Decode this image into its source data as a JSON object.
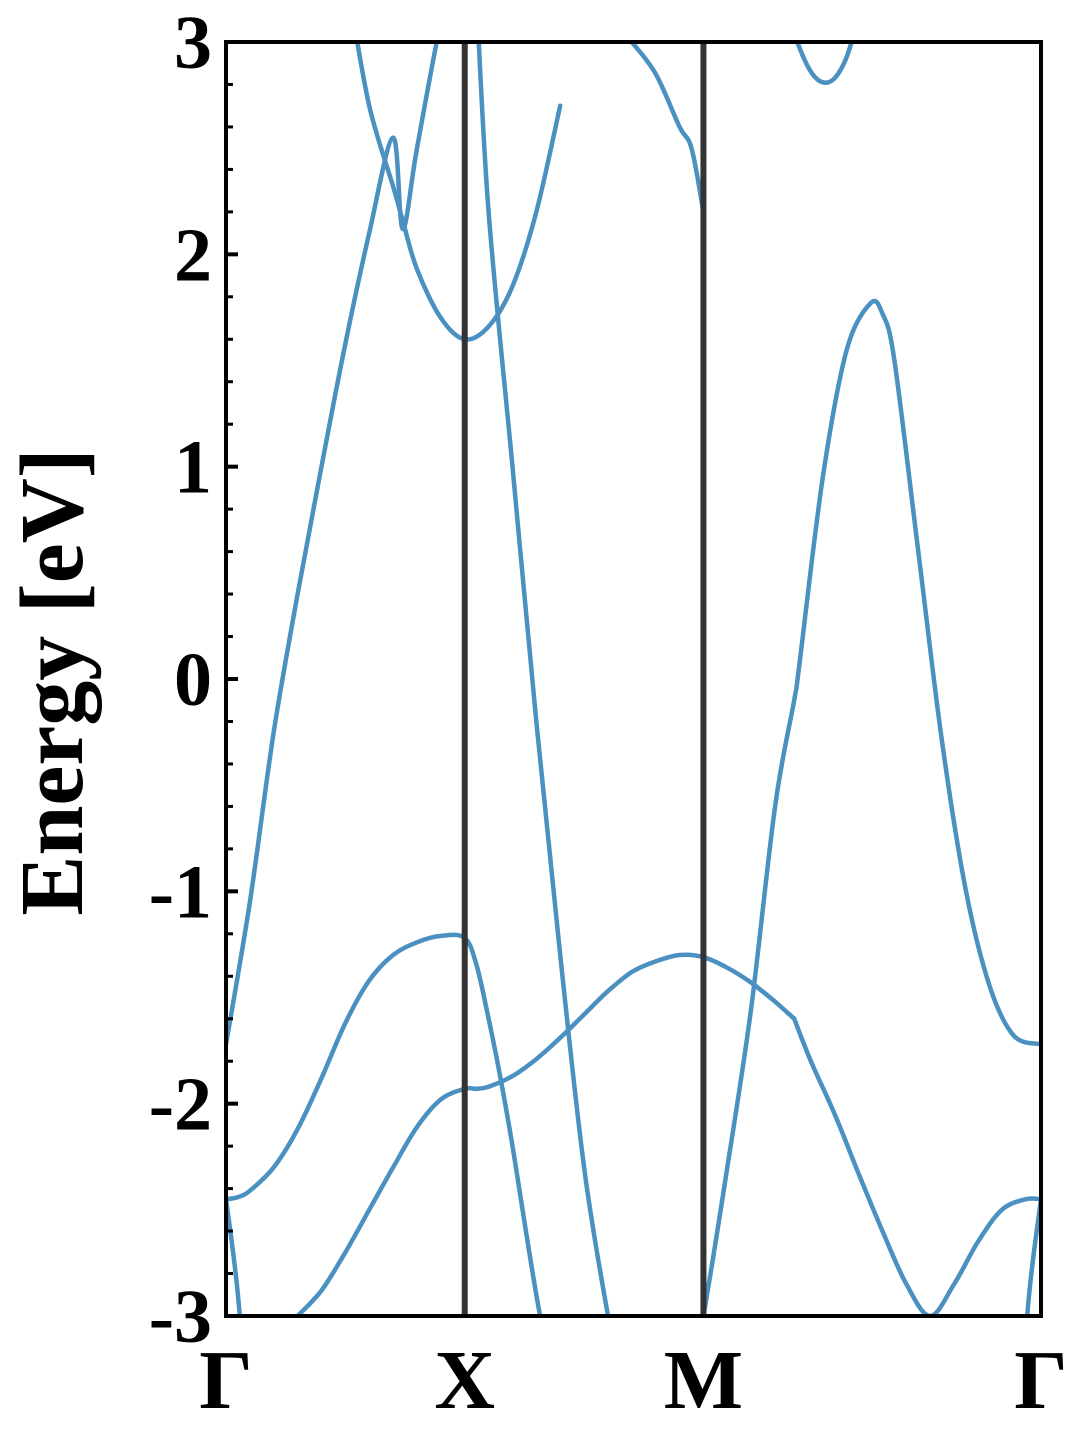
{
  "chart_data": {
    "type": "line",
    "title": "",
    "ylabel": "Energy [eV]",
    "xlabel": "",
    "ylim": [
      -3,
      3
    ],
    "y_ticks": [
      "-3",
      "-2",
      "-1",
      "0",
      "1",
      "2",
      "3"
    ],
    "y_minor_step": 0.2,
    "grid": false,
    "legend": "none",
    "line_color": "#4a90c0",
    "divider_color": "#333333",
    "path": {
      "labels": [
        "Γ",
        "X",
        "M",
        "Γ"
      ],
      "positions": [
        0,
        1,
        2,
        3.414
      ]
    },
    "series": [
      {
        "x": [
          0,
          0.1,
          0.2,
          0.3,
          0.4,
          0.5,
          0.6,
          0.7,
          0.74,
          0.8,
          0.9,
          1.0
        ],
        "y": [
          -1.72,
          -1.05,
          -0.25,
          0.4,
          1.0,
          1.58,
          2.1,
          2.55,
          2.12,
          2.5,
          3.1,
          3.6
        ]
      },
      {
        "x": [
          0.52,
          0.6,
          0.7,
          0.74,
          0.8,
          0.9,
          1.0,
          1.1,
          1.2,
          1.3,
          1.4
        ],
        "y": [
          3.2,
          2.7,
          2.32,
          2.16,
          1.93,
          1.7,
          1.6,
          1.66,
          1.85,
          2.2,
          2.7
        ]
      },
      {
        "x": [
          1.05,
          1.1,
          1.2,
          1.3,
          1.4,
          1.5,
          1.6,
          1.7
        ],
        "y": [
          3.2,
          2.2,
          1.0,
          -0.2,
          -1.3,
          -2.3,
          -3.0,
          -3.6
        ]
      },
      {
        "x": [
          0,
          0.05,
          0.1,
          0.2,
          0.3,
          0.4,
          0.5,
          0.6,
          0.7,
          0.8,
          0.9,
          1.0,
          1.05,
          1.1,
          1.15,
          1.2,
          1.3,
          1.4
        ],
        "y": [
          -2.45,
          -2.44,
          -2.41,
          -2.3,
          -2.12,
          -1.88,
          -1.62,
          -1.42,
          -1.3,
          -1.24,
          -1.21,
          -1.22,
          -1.35,
          -1.6,
          -1.88,
          -2.2,
          -2.9,
          -3.5
        ]
      },
      {
        "x": [
          0.3,
          0.4,
          0.5,
          0.6,
          0.7,
          0.8,
          0.9,
          1.0,
          1.05,
          1.1,
          1.2,
          1.3,
          1.4,
          1.5,
          1.6,
          1.7,
          1.8,
          1.9,
          2.0,
          2.1,
          2.2,
          2.3,
          2.38
        ],
        "y": [
          -3.0,
          -2.88,
          -2.7,
          -2.5,
          -2.3,
          -2.11,
          -1.98,
          -1.93,
          -1.93,
          -1.92,
          -1.87,
          -1.79,
          -1.69,
          -1.58,
          -1.47,
          -1.38,
          -1.33,
          -1.3,
          -1.31,
          -1.36,
          -1.43,
          -1.52,
          -1.6
        ]
      },
      {
        "x": [
          2.38,
          2.45,
          2.55,
          2.65,
          2.75,
          2.85,
          2.95,
          3.05,
          3.15,
          3.25,
          3.35,
          3.414
        ],
        "y": [
          -1.6,
          -1.8,
          -2.05,
          -2.33,
          -2.6,
          -2.85,
          -3.0,
          -2.85,
          -2.65,
          -2.5,
          -2.45,
          -2.45
        ]
      },
      {
        "x": [
          0,
          0.05,
          0.1
        ],
        "y": [
          -2.45,
          -2.9,
          -3.6
        ]
      },
      {
        "x": [
          3.414,
          3.364,
          3.314
        ],
        "y": [
          -2.45,
          -2.9,
          -3.6
        ]
      },
      {
        "x": [
          1.9,
          2.0,
          2.1,
          2.2,
          2.3,
          2.38,
          2.4,
          2.5,
          2.6,
          2.7,
          2.75,
          2.8,
          2.9,
          3.0,
          3.1,
          3.2,
          3.3,
          3.414
        ],
        "y": [
          -3.6,
          -3.0,
          -2.3,
          -1.55,
          -0.6,
          -0.1,
          0.05,
          0.95,
          1.55,
          1.77,
          1.72,
          1.5,
          0.6,
          -0.3,
          -1.0,
          -1.45,
          -1.68,
          -1.72
        ]
      },
      {
        "x": [
          2.35,
          2.4,
          2.45,
          2.5,
          2.55,
          2.6,
          2.66
        ],
        "y": [
          3.15,
          2.98,
          2.86,
          2.81,
          2.83,
          2.93,
          3.15
        ]
      },
      {
        "x": [
          1.7,
          1.8,
          1.9,
          1.95,
          2.0
        ],
        "y": [
          3.0,
          2.85,
          2.6,
          2.5,
          2.2
        ]
      }
    ]
  }
}
